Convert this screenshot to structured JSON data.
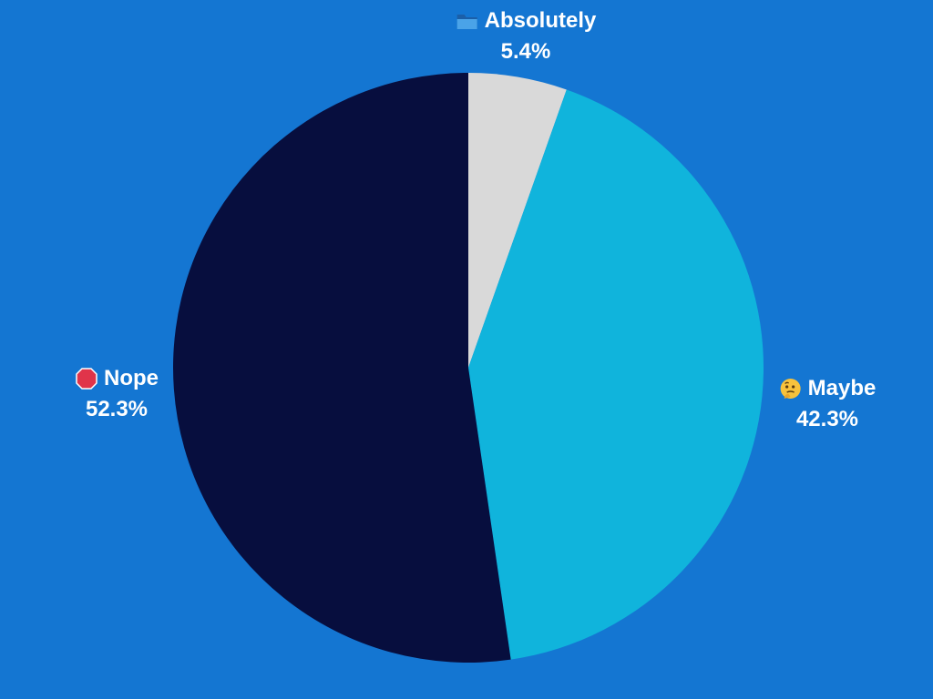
{
  "chart_data": {
    "type": "pie",
    "start_angle": "12 o'clock",
    "direction": "clockwise",
    "slices": [
      {
        "label": "Absolutely",
        "value": 5.4,
        "value_label": "5.4%",
        "color": "#d9d9d9",
        "icon": "folder-icon"
      },
      {
        "label": "Maybe",
        "value": 42.3,
        "value_label": "42.3%",
        "color": "#10b4dc",
        "icon": "thinking-face-icon"
      },
      {
        "label": "Nope",
        "value": 52.3,
        "value_label": "52.3%",
        "color": "#070e3e",
        "icon": "stop-sign-icon"
      }
    ]
  },
  "colors": {
    "background": "#1476d2",
    "label_text": "#ffffff"
  }
}
